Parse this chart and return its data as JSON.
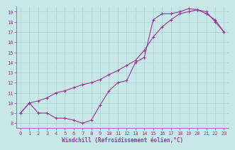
{
  "xlabel": "Windchill (Refroidissement éolien,°C)",
  "xlim": [
    -0.5,
    23.5
  ],
  "ylim": [
    7.5,
    19.5
  ],
  "xticks": [
    0,
    1,
    2,
    3,
    4,
    5,
    6,
    7,
    8,
    9,
    10,
    11,
    12,
    13,
    14,
    15,
    16,
    17,
    18,
    19,
    20,
    21,
    22,
    23
  ],
  "yticks": [
    8,
    9,
    10,
    11,
    12,
    13,
    14,
    15,
    16,
    17,
    18,
    19
  ],
  "bg_color": "#c8e8e8",
  "line_color": "#993399",
  "grid_color": "#a8cccc",
  "curve1_x": [
    0,
    1,
    2,
    3,
    4,
    5,
    6,
    7,
    8,
    9,
    10,
    11,
    12,
    13,
    14,
    15,
    16,
    17,
    18,
    19,
    20,
    21,
    22,
    23
  ],
  "curve1_y": [
    9,
    10,
    9,
    9,
    8.5,
    8.5,
    8.3,
    8.0,
    8.3,
    9.8,
    11.2,
    12.0,
    12.2,
    14.0,
    14.5,
    18.2,
    18.8,
    18.8,
    19.0,
    19.3,
    19.2,
    19.0,
    18.0,
    17.0
  ],
  "curve2_x": [
    0,
    1,
    2,
    3,
    4,
    5,
    6,
    7,
    8,
    9,
    10,
    11,
    12,
    13,
    14,
    15,
    16,
    17,
    18,
    19,
    20,
    21,
    22,
    23
  ],
  "curve2_y": [
    9,
    10,
    10.2,
    10.5,
    11.0,
    11.2,
    11.5,
    11.8,
    12.0,
    12.3,
    12.8,
    13.2,
    13.7,
    14.2,
    15.2,
    16.5,
    17.5,
    18.2,
    18.8,
    19.0,
    19.2,
    18.8,
    18.2,
    17.0
  ],
  "tick_fontsize": 5.0,
  "label_fontsize": 5.5
}
